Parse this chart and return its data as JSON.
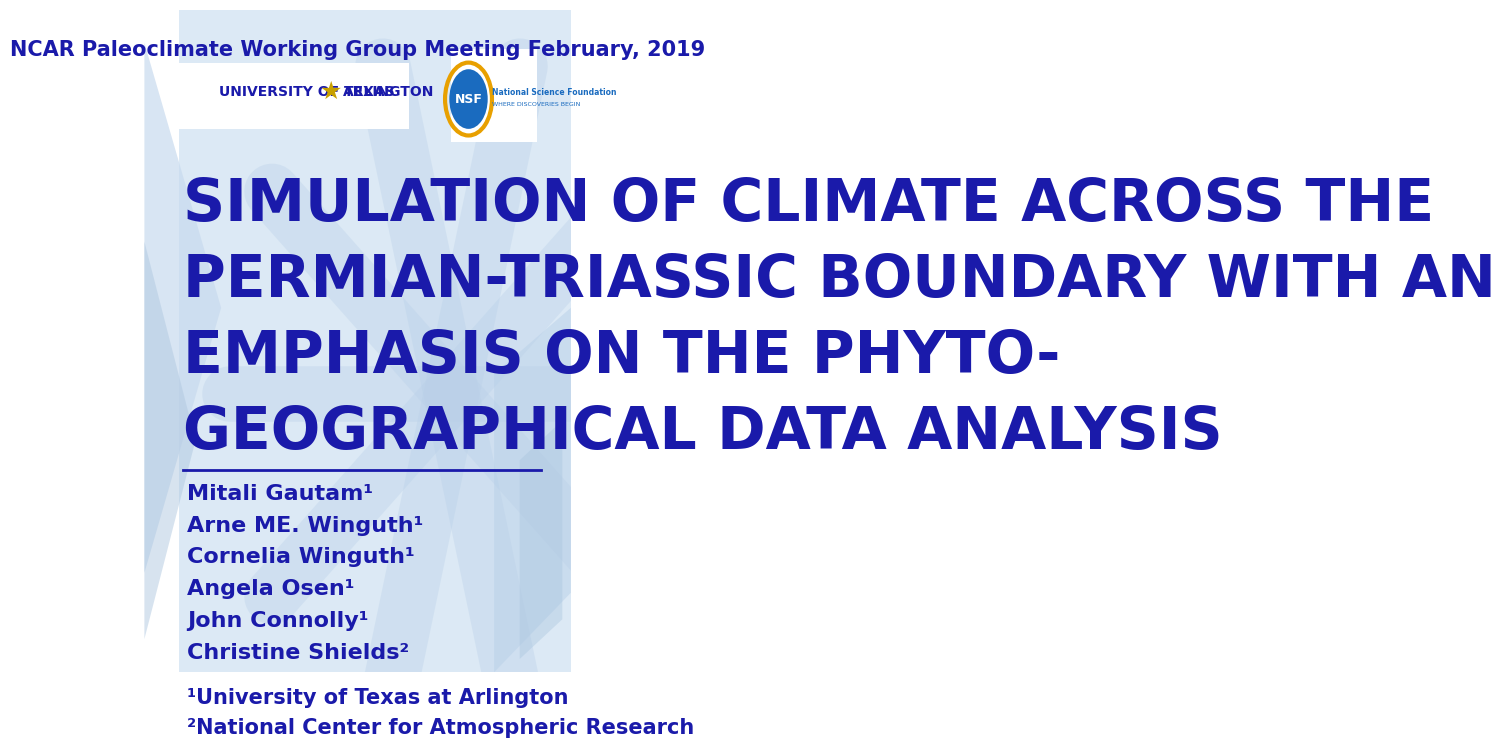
{
  "background_color": "#ffffff",
  "slide_bg_color": "#dce9f5",
  "header_text": "NCAR Paleoclimate Working Group Meeting February, 2019",
  "header_color": "#1a1aaa",
  "header_fontsize": 15,
  "title_lines": [
    "SIMULATION OF CLIMATE ACROSS THE",
    "PERMIAN-TRIASSIC BOUNDARY WITH AN",
    "EMPHASIS ON THE PHYTO-",
    "GEOGRAPHICAL DATA ANALYSIS"
  ],
  "title_color": "#1a1aaa",
  "title_fontsize": 42,
  "authors": [
    "Mitali Gautam¹",
    "Arne ME. Winguth¹",
    "Cornelia Winguth¹",
    "Angela Osen¹",
    "John Connolly¹",
    "Christine Shields²"
  ],
  "affiliations": [
    "¹University of Texas at Arlington",
    "²National Center for Atmospheric Research"
  ],
  "author_color": "#1a1aaa",
  "author_fontsize": 16,
  "affiliation_fontsize": 15,
  "line_color": "#1a1aaa",
  "uta_logo_text": "UNIVERSITY OF TEXAS ★ ARLINGTON",
  "uta_logo_color": "#1a1aaa",
  "star_color": "#c8a000",
  "star_bg_color": "#dce9f5",
  "nsf_circle_color": "#1a6bbf",
  "nsf_text": "NSF",
  "nsf_ring_color": "#e8a000",
  "snowflake_color": "#b8cfe8",
  "arrow_color": "#c5d8ee"
}
